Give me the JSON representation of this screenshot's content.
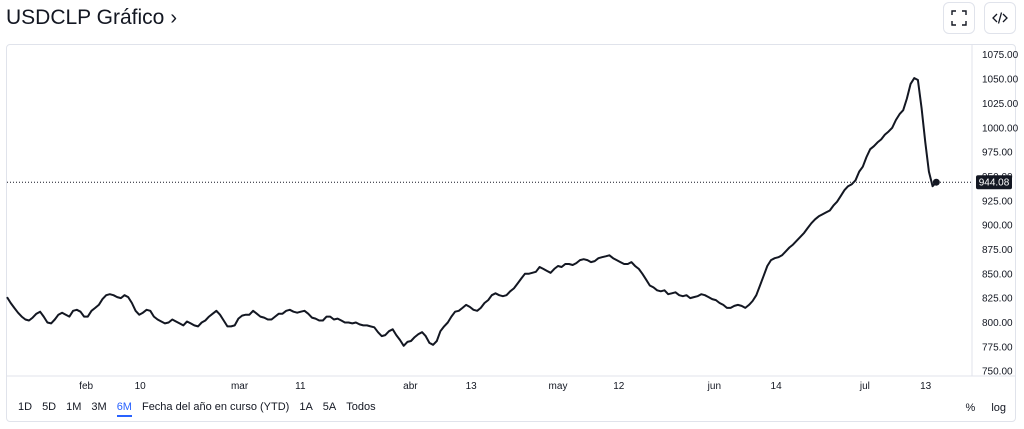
{
  "header": {
    "title": "USDCLP Gráfico"
  },
  "chart_data": {
    "type": "line",
    "title": "USDCLP Gráfico",
    "xlabel": "",
    "ylabel": "",
    "ylim": [
      745,
      1085
    ],
    "y_ticks": [
      750,
      775,
      800,
      825,
      850,
      875,
      900,
      925,
      950,
      975,
      1000,
      1025,
      1050,
      1075
    ],
    "y_tick_labels": [
      "750.00",
      "775.00",
      "800.00",
      "825.00",
      "850.00",
      "875.00",
      "900.00",
      "925.00",
      "950.00",
      "975.00",
      "1000.00",
      "1025.00",
      "1050.00",
      "1075.00"
    ],
    "x_ticks": [
      {
        "label": "feb",
        "pos": 0.082
      },
      {
        "label": "10",
        "pos": 0.138
      },
      {
        "label": "mar",
        "pos": 0.241
      },
      {
        "label": "11",
        "pos": 0.304
      },
      {
        "label": "abr",
        "pos": 0.418
      },
      {
        "label": "13",
        "pos": 0.481
      },
      {
        "label": "may",
        "pos": 0.571
      },
      {
        "label": "12",
        "pos": 0.634
      },
      {
        "label": "jun",
        "pos": 0.733
      },
      {
        "label": "14",
        "pos": 0.797
      },
      {
        "label": "jul",
        "pos": 0.889
      },
      {
        "label": "13",
        "pos": 0.952
      }
    ],
    "current_price": 944.08,
    "current_price_label": "944.08",
    "series": [
      {
        "values": [
          826,
          820,
          815,
          810,
          806,
          803,
          802,
          805,
          809,
          811,
          806,
          800,
          799,
          803,
          808,
          810,
          808,
          806,
          812,
          813,
          811,
          806,
          806,
          812,
          815,
          818,
          824,
          828,
          829,
          828,
          826,
          825,
          828,
          826,
          820,
          812,
          808,
          810,
          813,
          812,
          806,
          803,
          801,
          799,
          800,
          803,
          801,
          799,
          797,
          801,
          799,
          797,
          796,
          800,
          802,
          806,
          809,
          812,
          808,
          802,
          796,
          796,
          797,
          804,
          807,
          808,
          808,
          812,
          809,
          806,
          805,
          803,
          803,
          806,
          809,
          809,
          812,
          813,
          811,
          810,
          811,
          812,
          809,
          805,
          804,
          802,
          802,
          806,
          806,
          803,
          804,
          802,
          800,
          800,
          799,
          800,
          798,
          797,
          797,
          796,
          795,
          790,
          786,
          787,
          791,
          793,
          787,
          782,
          776,
          780,
          781,
          785,
          788,
          790,
          786,
          779,
          777,
          781,
          791,
          796,
          800,
          806,
          811,
          812,
          815,
          818,
          816,
          813,
          812,
          815,
          820,
          823,
          828,
          830,
          828,
          827,
          828,
          832,
          835,
          840,
          845,
          850,
          850,
          851,
          852,
          857,
          855,
          853,
          851,
          855,
          858,
          857,
          860,
          860,
          859,
          861,
          864,
          865,
          864,
          862,
          863,
          866,
          867,
          868,
          869,
          866,
          864,
          862,
          860,
          860,
          862,
          858,
          855,
          850,
          844,
          838,
          836,
          833,
          832,
          833,
          829,
          830,
          831,
          828,
          827,
          828,
          825,
          826,
          827,
          829,
          828,
          826,
          824,
          823,
          820,
          818,
          815,
          815,
          817,
          818,
          817,
          815,
          818,
          822,
          828,
          838,
          848,
          858,
          864,
          866,
          867,
          869,
          873,
          877,
          880,
          884,
          888,
          892,
          897,
          902,
          906,
          909,
          911,
          913,
          915,
          920,
          924,
          930,
          936,
          940,
          942,
          946,
          955,
          960,
          970,
          978,
          981,
          985,
          988,
          993,
          996,
          1000,
          1008,
          1014,
          1018,
          1030,
          1045,
          1051,
          1049,
          1020,
          985,
          955,
          940,
          944.08
        ]
      }
    ]
  },
  "ranges": [
    "1D",
    "5D",
    "1M",
    "3M",
    "6M",
    "Fecha del año en curso (YTD)",
    "1A",
    "5A",
    "Todos"
  ],
  "active_range": "6M",
  "options": {
    "percent": "%",
    "log": "log"
  },
  "colors": {
    "line": "#131722",
    "grid": "#e0e3eb",
    "accent": "#2962ff",
    "label_bg": "#131722"
  }
}
